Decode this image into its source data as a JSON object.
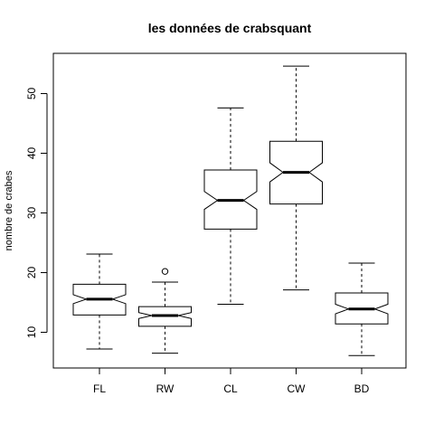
{
  "chart_data": {
    "type": "boxplot",
    "title": "les données de crabsquant",
    "xlabel": "",
    "ylabel": "nombre de crabes",
    "categories": [
      "FL",
      "RW",
      "CL",
      "CW",
      "BD"
    ],
    "yticks": [
      10,
      20,
      30,
      40,
      50
    ],
    "ylim": [
      4,
      57
    ],
    "notched": true,
    "grid": false,
    "boxes": [
      {
        "name": "FL",
        "min": 7.2,
        "q1": 12.9,
        "median": 15.55,
        "q3": 18.05,
        "max": 23.1,
        "notch_low": 14.8,
        "notch_high": 16.3,
        "outliers": []
      },
      {
        "name": "RW",
        "min": 6.5,
        "q1": 11.0,
        "median": 12.8,
        "q3": 14.3,
        "max": 18.4,
        "notch_low": 12.3,
        "notch_high": 13.3,
        "outliers": [
          20.2
        ]
      },
      {
        "name": "CL",
        "min": 14.7,
        "q1": 27.3,
        "median": 32.1,
        "q3": 37.2,
        "max": 47.6,
        "notch_low": 30.6,
        "notch_high": 33.6,
        "outliers": []
      },
      {
        "name": "CW",
        "min": 17.1,
        "q1": 31.5,
        "median": 36.8,
        "q3": 42.0,
        "max": 54.6,
        "notch_low": 35.2,
        "notch_high": 38.4,
        "outliers": []
      },
      {
        "name": "BD",
        "min": 6.1,
        "q1": 11.4,
        "median": 13.9,
        "q3": 16.6,
        "max": 21.6,
        "notch_low": 13.1,
        "notch_high": 14.7,
        "outliers": []
      }
    ]
  }
}
